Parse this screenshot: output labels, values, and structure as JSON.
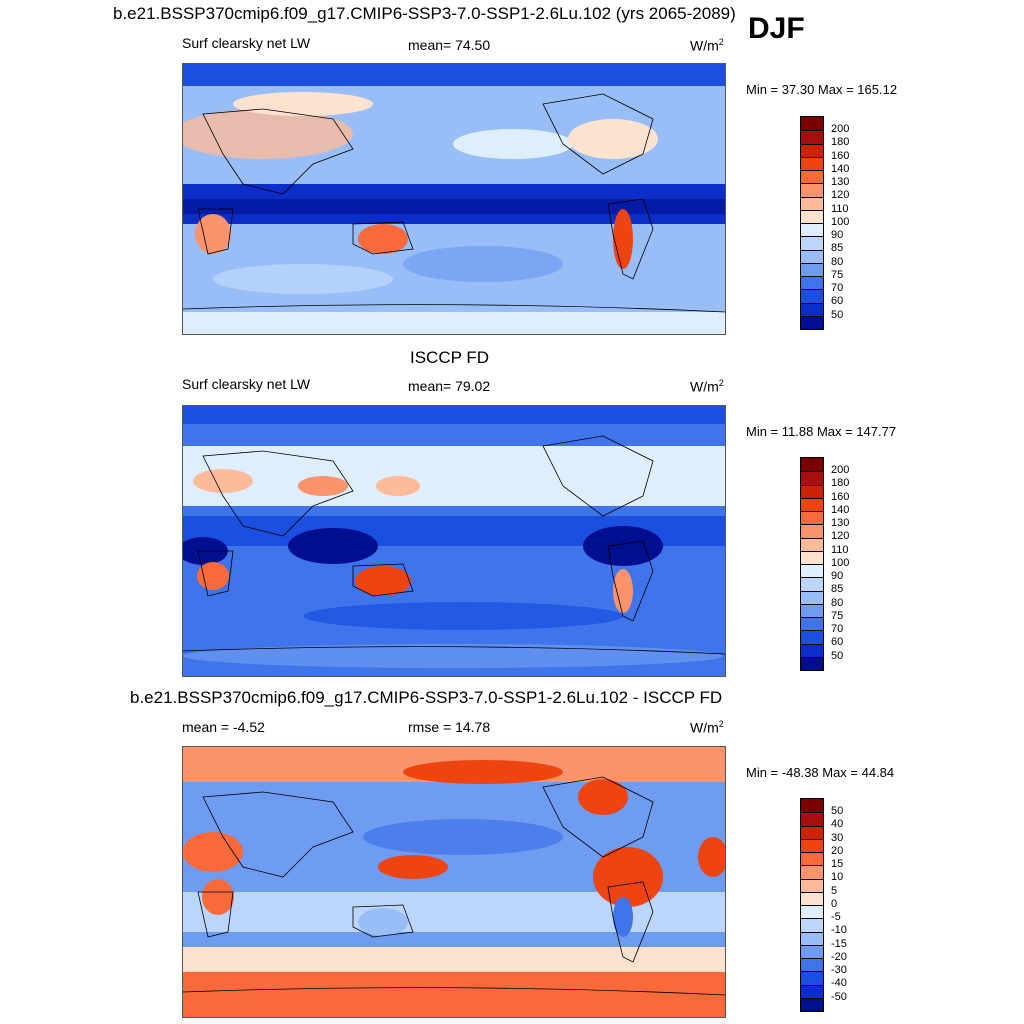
{
  "season": "DJF",
  "panels": [
    {
      "title": "b.e21.BSSP370cmip6.f09_g17.CMIP6-SSP3-7.0-SSP1-2.6Lu.102 (yrs 2065-2089)",
      "left": "Surf clearsky net LW",
      "center": "mean=  74.50",
      "units": "W/m",
      "units_sup": "2",
      "minmax": "Min =  37.30 Max = 165.12",
      "colorbar": {
        "labels": [
          "200",
          "180",
          "160",
          "140",
          "130",
          "120",
          "110",
          "100",
          "90",
          "85",
          "80",
          "75",
          "70",
          "60",
          "50"
        ],
        "colors": [
          "#7a0000",
          "#a50f0f",
          "#cc2200",
          "#ee4411",
          "#f86a3a",
          "#fb936c",
          "#fdbb9a",
          "#fde3cf",
          "#dfeefc",
          "#bcd6fb",
          "#98bdf7",
          "#6e9cf1",
          "#3f74ea",
          "#1a4fdf",
          "#0b2ec9",
          "#000f8f"
        ]
      }
    },
    {
      "title": "ISCCP FD",
      "left": "Surf clearsky net LW",
      "center": "mean=  79.02",
      "units": "W/m",
      "units_sup": "2",
      "minmax": "Min =  11.88 Max = 147.77",
      "colorbar": {
        "labels": [
          "200",
          "180",
          "160",
          "140",
          "130",
          "120",
          "110",
          "100",
          "90",
          "85",
          "80",
          "75",
          "70",
          "60",
          "50"
        ],
        "colors": [
          "#7a0000",
          "#a50f0f",
          "#cc2200",
          "#ee4411",
          "#f86a3a",
          "#fb936c",
          "#fdbb9a",
          "#fde3cf",
          "#dfeefc",
          "#bcd6fb",
          "#98bdf7",
          "#6e9cf1",
          "#3f74ea",
          "#1a4fdf",
          "#0b2ec9",
          "#000f8f"
        ]
      }
    },
    {
      "title": "b.e21.BSSP370cmip6.f09_g17.CMIP6-SSP3-7.0-SSP1-2.6Lu.102 - ISCCP FD",
      "left": "mean =  -4.52",
      "center": "rmse =  14.78",
      "units": "W/m",
      "units_sup": "2",
      "minmax": "Min = -48.38 Max =  44.84",
      "colorbar": {
        "labels": [
          "50",
          "40",
          "30",
          "20",
          "15",
          "10",
          "5",
          "0",
          "-5",
          "-10",
          "-15",
          "-20",
          "-30",
          "-40",
          "-50"
        ],
        "colors": [
          "#7a0000",
          "#a50f0f",
          "#cc2200",
          "#ee4411",
          "#f86a3a",
          "#fb936c",
          "#fdbb9a",
          "#fde3cf",
          "#dfeefc",
          "#bcd6fb",
          "#98bdf7",
          "#6e9cf1",
          "#3f74ea",
          "#1a4fdf",
          "#0b2ec9",
          "#000f8f"
        ]
      }
    }
  ]
}
